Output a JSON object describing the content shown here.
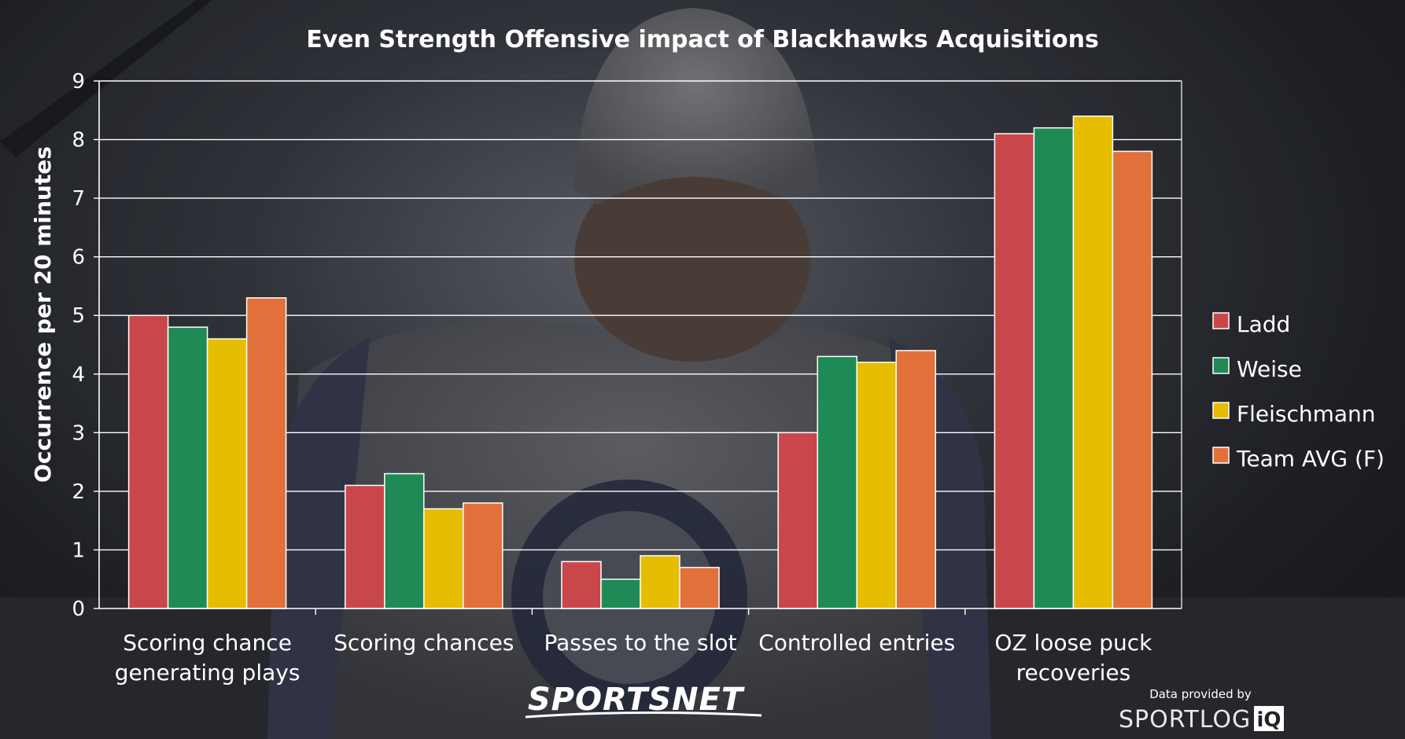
{
  "chart_data": {
    "type": "bar",
    "title": "Even Strength Offensive impact of Blackhawks Acquisitions",
    "ylabel": "Occurrence per 20 minutes",
    "xlabel": "",
    "ylim": [
      0,
      9
    ],
    "yticks": [
      0,
      1,
      2,
      3,
      4,
      5,
      6,
      7,
      8,
      9
    ],
    "grid": true,
    "legend_position": "right",
    "categories": [
      [
        "Scoring chance",
        "generating plays"
      ],
      [
        "Scoring chances"
      ],
      [
        "Passes to the slot"
      ],
      [
        "Controlled entries"
      ],
      [
        "OZ loose puck",
        "recoveries"
      ]
    ],
    "series": [
      {
        "name": "Ladd",
        "color": "#c9474a",
        "values": [
          5.0,
          2.1,
          0.8,
          3.0,
          8.1
        ]
      },
      {
        "name": "Weise",
        "color": "#1f8a55",
        "values": [
          4.8,
          2.3,
          0.5,
          4.3,
          8.2
        ]
      },
      {
        "name": "Fleischmann",
        "color": "#e6bd00",
        "values": [
          4.6,
          1.7,
          0.9,
          4.2,
          8.4
        ]
      },
      {
        "name": "Team AVG (F)",
        "color": "#e2703a",
        "values": [
          5.3,
          1.8,
          0.7,
          4.4,
          7.8
        ]
      }
    ]
  },
  "branding": {
    "sportsnet": "SPORTSNET",
    "data_credit": "Data provided by",
    "sportlogiq_main": "SPORTLOG",
    "sportlogiq_iq": "iQ"
  }
}
